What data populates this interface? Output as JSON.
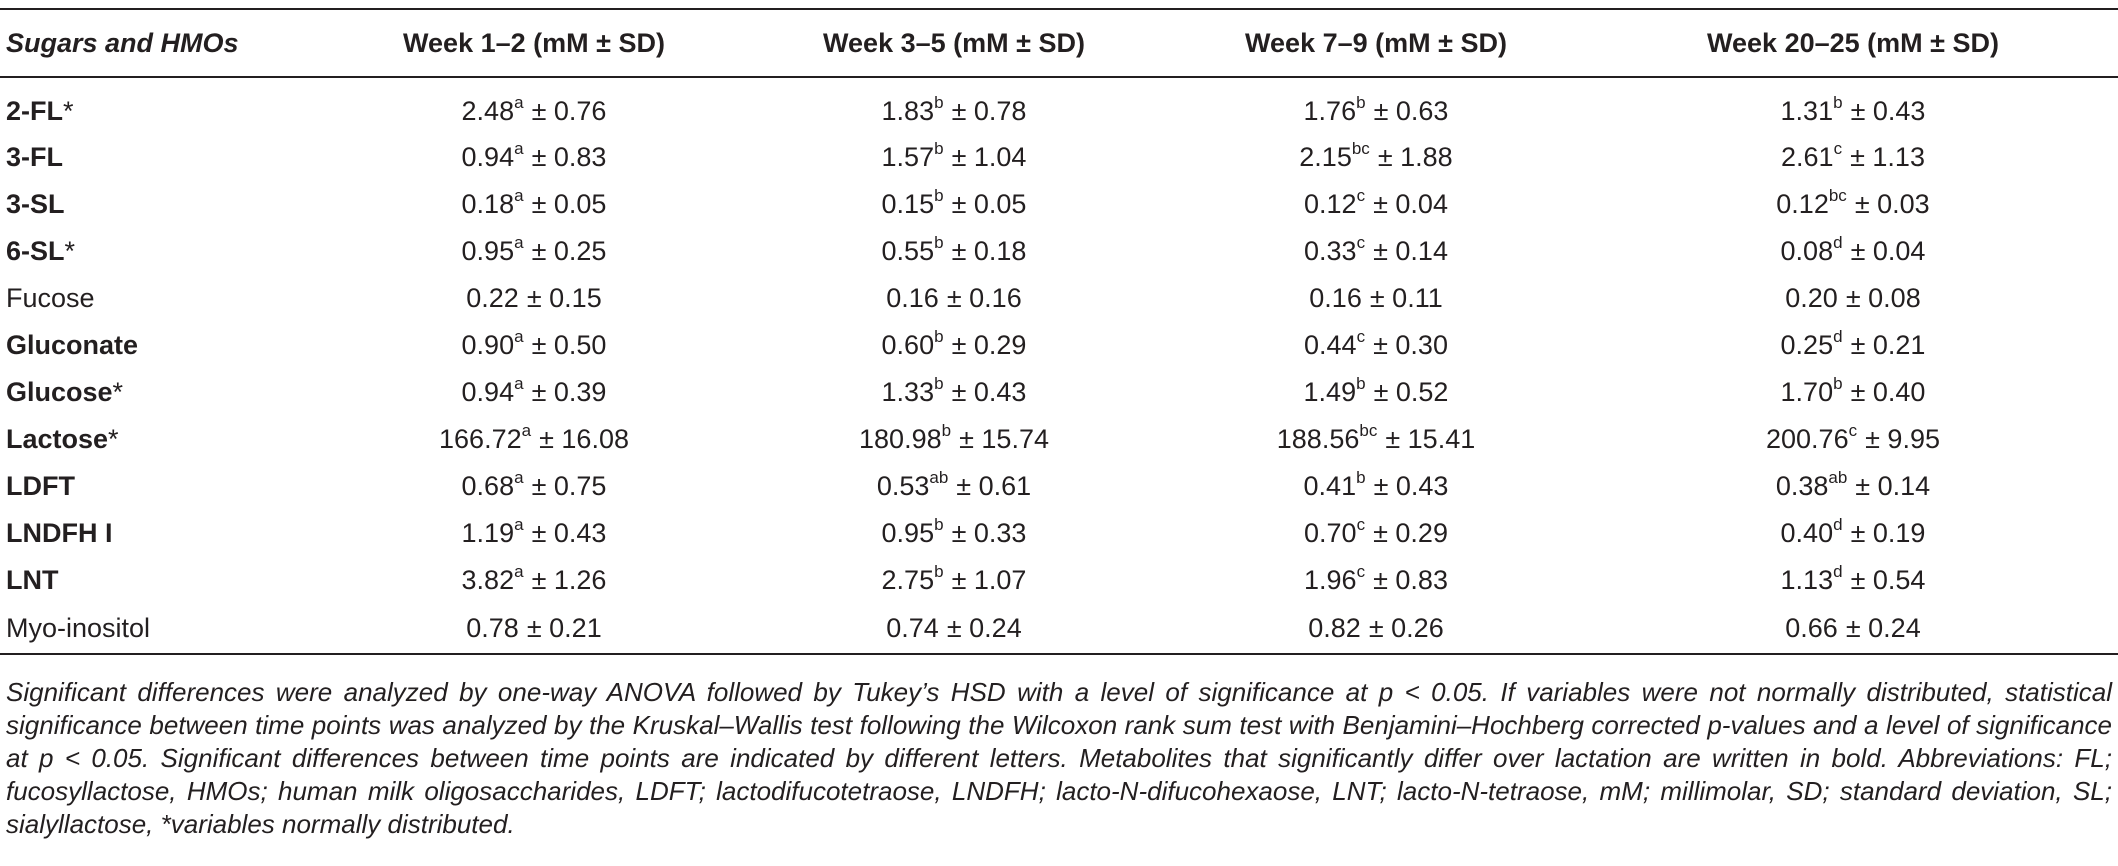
{
  "table": {
    "headers": [
      "Sugars and HMOs",
      "Week 1–2 (mM ± SD)",
      "Week 3–5 (mM ± SD)",
      "Week 7–9 (mM ± SD)",
      "Week 20–25 (mM ± SD)"
    ],
    "rows": [
      {
        "name": "2-FL",
        "asterisk": "*",
        "bold": true,
        "cells": [
          {
            "v": "2.48",
            "s": "a",
            "sd": "0.76"
          },
          {
            "v": "1.83",
            "s": "b",
            "sd": "0.78"
          },
          {
            "v": "1.76",
            "s": "b",
            "sd": "0.63"
          },
          {
            "v": "1.31",
            "s": "b",
            "sd": "0.43"
          }
        ]
      },
      {
        "name": "3-FL",
        "asterisk": "",
        "bold": true,
        "cells": [
          {
            "v": "0.94",
            "s": "a",
            "sd": "0.83"
          },
          {
            "v": "1.57",
            "s": "b",
            "sd": "1.04"
          },
          {
            "v": "2.15",
            "s": "bc",
            "sd": "1.88"
          },
          {
            "v": "2.61",
            "s": "c",
            "sd": "1.13"
          }
        ]
      },
      {
        "name": "3-SL",
        "asterisk": "",
        "bold": true,
        "cells": [
          {
            "v": "0.18",
            "s": "a",
            "sd": "0.05"
          },
          {
            "v": "0.15",
            "s": "b",
            "sd": "0.05"
          },
          {
            "v": "0.12",
            "s": "c",
            "sd": "0.04"
          },
          {
            "v": "0.12",
            "s": "bc",
            "sd": "0.03"
          }
        ]
      },
      {
        "name": "6-SL",
        "asterisk": "*",
        "bold": true,
        "cells": [
          {
            "v": "0.95",
            "s": "a",
            "sd": "0.25"
          },
          {
            "v": "0.55",
            "s": "b",
            "sd": "0.18"
          },
          {
            "v": "0.33",
            "s": "c",
            "sd": "0.14"
          },
          {
            "v": "0.08",
            "s": "d",
            "sd": "0.04"
          }
        ]
      },
      {
        "name": "Fucose",
        "asterisk": "",
        "bold": false,
        "cells": [
          {
            "v": "0.22",
            "s": "",
            "sd": "0.15"
          },
          {
            "v": "0.16",
            "s": "",
            "sd": "0.16"
          },
          {
            "v": "0.16",
            "s": "",
            "sd": "0.11"
          },
          {
            "v": "0.20",
            "s": "",
            "sd": "0.08"
          }
        ]
      },
      {
        "name": "Gluconate",
        "asterisk": "",
        "bold": true,
        "cells": [
          {
            "v": "0.90",
            "s": "a",
            "sd": "0.50"
          },
          {
            "v": "0.60",
            "s": "b",
            "sd": "0.29"
          },
          {
            "v": "0.44",
            "s": "c",
            "sd": "0.30"
          },
          {
            "v": "0.25",
            "s": "d",
            "sd": "0.21"
          }
        ]
      },
      {
        "name": "Glucose",
        "asterisk": "*",
        "bold": true,
        "cells": [
          {
            "v": "0.94",
            "s": "a",
            "sd": "0.39"
          },
          {
            "v": "1.33",
            "s": "b",
            "sd": "0.43"
          },
          {
            "v": "1.49",
            "s": "b",
            "sd": "0.52"
          },
          {
            "v": "1.70",
            "s": "b",
            "sd": "0.40"
          }
        ]
      },
      {
        "name": "Lactose",
        "asterisk": "*",
        "bold": true,
        "cells": [
          {
            "v": "166.72",
            "s": "a",
            "sd": "16.08"
          },
          {
            "v": "180.98",
            "s": "b",
            "sd": "15.74"
          },
          {
            "v": "188.56",
            "s": "bc",
            "sd": "15.41"
          },
          {
            "v": "200.76",
            "s": "c",
            "sd": "9.95"
          }
        ]
      },
      {
        "name": "LDFT",
        "asterisk": "",
        "bold": true,
        "cells": [
          {
            "v": "0.68",
            "s": "a",
            "sd": "0.75"
          },
          {
            "v": "0.53",
            "s": "ab",
            "sd": "0.61"
          },
          {
            "v": "0.41",
            "s": "b",
            "sd": "0.43"
          },
          {
            "v": "0.38",
            "s": "ab",
            "sd": "0.14"
          }
        ]
      },
      {
        "name": "LNDFH I",
        "asterisk": "",
        "bold": true,
        "cells": [
          {
            "v": "1.19",
            "s": "a",
            "sd": "0.43"
          },
          {
            "v": "0.95",
            "s": "b",
            "sd": "0.33"
          },
          {
            "v": "0.70",
            "s": "c",
            "sd": "0.29"
          },
          {
            "v": "0.40",
            "s": "d",
            "sd": "0.19"
          }
        ]
      },
      {
        "name": "LNT",
        "asterisk": "",
        "bold": true,
        "cells": [
          {
            "v": "3.82",
            "s": "a",
            "sd": "1.26"
          },
          {
            "v": "2.75",
            "s": "b",
            "sd": "1.07"
          },
          {
            "v": "1.96",
            "s": "c",
            "sd": "0.83"
          },
          {
            "v": "1.13",
            "s": "d",
            "sd": "0.54"
          }
        ]
      },
      {
        "name": "Myo-inositol",
        "asterisk": "",
        "bold": false,
        "cells": [
          {
            "v": "0.78",
            "s": "",
            "sd": "0.21"
          },
          {
            "v": "0.74",
            "s": "",
            "sd": "0.24"
          },
          {
            "v": "0.82",
            "s": "",
            "sd": "0.26"
          },
          {
            "v": "0.66",
            "s": "",
            "sd": "0.24"
          }
        ]
      }
    ]
  },
  "footnote": "Significant differences were analyzed by one-way ANOVA followed by Tukey’s HSD with a level of significance at p < 0.05. If variables were not normally distributed, statistical significance between time points was analyzed by the Kruskal–Wallis test following the Wilcoxon rank sum test with Benjamini–Hochberg corrected p-values and a level of significance at p < 0.05. Significant differences between time points are indicated by different letters. Metabolites that significantly differ over lactation are written in bold. Abbreviations: FL; fucosyllactose, HMOs; human milk oligosaccharides, LDFT; lactodifucotetraose, LNDFH; lacto-N-difucohexaose, LNT; lacto-N-tetraose, mM; millimolar, SD; standard deviation, SL; sialyllactose, *variables normally distributed."
}
